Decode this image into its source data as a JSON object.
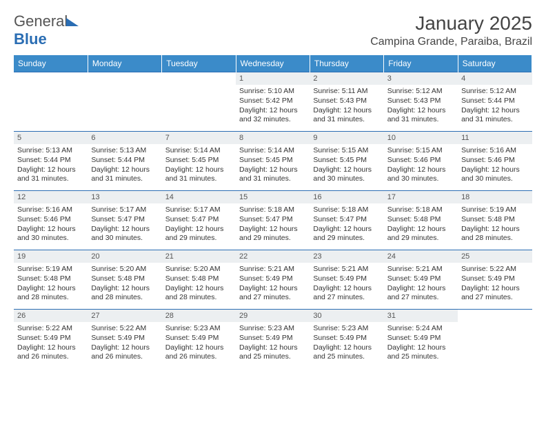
{
  "logo": {
    "text1": "General",
    "text2": "Blue"
  },
  "title": "January 2025",
  "location": "Campina Grande, Paraiba, Brazil",
  "colors": {
    "header_bg": "#3b8bc9",
    "header_text": "#ffffff",
    "daynum_bg": "#eceff1",
    "cell_border": "#2a6db3",
    "logo_blue": "#2a6db3",
    "body_text": "#333333"
  },
  "weekdays": [
    "Sunday",
    "Monday",
    "Tuesday",
    "Wednesday",
    "Thursday",
    "Friday",
    "Saturday"
  ],
  "weeks": [
    [
      {
        "empty": true
      },
      {
        "empty": true
      },
      {
        "empty": true
      },
      {
        "n": "1",
        "sr": "5:10 AM",
        "ss": "5:42 PM",
        "dl": "12 hours and 32 minutes."
      },
      {
        "n": "2",
        "sr": "5:11 AM",
        "ss": "5:43 PM",
        "dl": "12 hours and 31 minutes."
      },
      {
        "n": "3",
        "sr": "5:12 AM",
        "ss": "5:43 PM",
        "dl": "12 hours and 31 minutes."
      },
      {
        "n": "4",
        "sr": "5:12 AM",
        "ss": "5:44 PM",
        "dl": "12 hours and 31 minutes."
      }
    ],
    [
      {
        "n": "5",
        "sr": "5:13 AM",
        "ss": "5:44 PM",
        "dl": "12 hours and 31 minutes."
      },
      {
        "n": "6",
        "sr": "5:13 AM",
        "ss": "5:44 PM",
        "dl": "12 hours and 31 minutes."
      },
      {
        "n": "7",
        "sr": "5:14 AM",
        "ss": "5:45 PM",
        "dl": "12 hours and 31 minutes."
      },
      {
        "n": "8",
        "sr": "5:14 AM",
        "ss": "5:45 PM",
        "dl": "12 hours and 31 minutes."
      },
      {
        "n": "9",
        "sr": "5:15 AM",
        "ss": "5:45 PM",
        "dl": "12 hours and 30 minutes."
      },
      {
        "n": "10",
        "sr": "5:15 AM",
        "ss": "5:46 PM",
        "dl": "12 hours and 30 minutes."
      },
      {
        "n": "11",
        "sr": "5:16 AM",
        "ss": "5:46 PM",
        "dl": "12 hours and 30 minutes."
      }
    ],
    [
      {
        "n": "12",
        "sr": "5:16 AM",
        "ss": "5:46 PM",
        "dl": "12 hours and 30 minutes."
      },
      {
        "n": "13",
        "sr": "5:17 AM",
        "ss": "5:47 PM",
        "dl": "12 hours and 30 minutes."
      },
      {
        "n": "14",
        "sr": "5:17 AM",
        "ss": "5:47 PM",
        "dl": "12 hours and 29 minutes."
      },
      {
        "n": "15",
        "sr": "5:18 AM",
        "ss": "5:47 PM",
        "dl": "12 hours and 29 minutes."
      },
      {
        "n": "16",
        "sr": "5:18 AM",
        "ss": "5:47 PM",
        "dl": "12 hours and 29 minutes."
      },
      {
        "n": "17",
        "sr": "5:18 AM",
        "ss": "5:48 PM",
        "dl": "12 hours and 29 minutes."
      },
      {
        "n": "18",
        "sr": "5:19 AM",
        "ss": "5:48 PM",
        "dl": "12 hours and 28 minutes."
      }
    ],
    [
      {
        "n": "19",
        "sr": "5:19 AM",
        "ss": "5:48 PM",
        "dl": "12 hours and 28 minutes."
      },
      {
        "n": "20",
        "sr": "5:20 AM",
        "ss": "5:48 PM",
        "dl": "12 hours and 28 minutes."
      },
      {
        "n": "21",
        "sr": "5:20 AM",
        "ss": "5:48 PM",
        "dl": "12 hours and 28 minutes."
      },
      {
        "n": "22",
        "sr": "5:21 AM",
        "ss": "5:49 PM",
        "dl": "12 hours and 27 minutes."
      },
      {
        "n": "23",
        "sr": "5:21 AM",
        "ss": "5:49 PM",
        "dl": "12 hours and 27 minutes."
      },
      {
        "n": "24",
        "sr": "5:21 AM",
        "ss": "5:49 PM",
        "dl": "12 hours and 27 minutes."
      },
      {
        "n": "25",
        "sr": "5:22 AM",
        "ss": "5:49 PM",
        "dl": "12 hours and 27 minutes."
      }
    ],
    [
      {
        "n": "26",
        "sr": "5:22 AM",
        "ss": "5:49 PM",
        "dl": "12 hours and 26 minutes."
      },
      {
        "n": "27",
        "sr": "5:22 AM",
        "ss": "5:49 PM",
        "dl": "12 hours and 26 minutes."
      },
      {
        "n": "28",
        "sr": "5:23 AM",
        "ss": "5:49 PM",
        "dl": "12 hours and 26 minutes."
      },
      {
        "n": "29",
        "sr": "5:23 AM",
        "ss": "5:49 PM",
        "dl": "12 hours and 25 minutes."
      },
      {
        "n": "30",
        "sr": "5:23 AM",
        "ss": "5:49 PM",
        "dl": "12 hours and 25 minutes."
      },
      {
        "n": "31",
        "sr": "5:24 AM",
        "ss": "5:49 PM",
        "dl": "12 hours and 25 minutes."
      },
      {
        "empty": true
      }
    ]
  ],
  "labels": {
    "sunrise": "Sunrise:",
    "sunset": "Sunset:",
    "daylight": "Daylight:"
  }
}
